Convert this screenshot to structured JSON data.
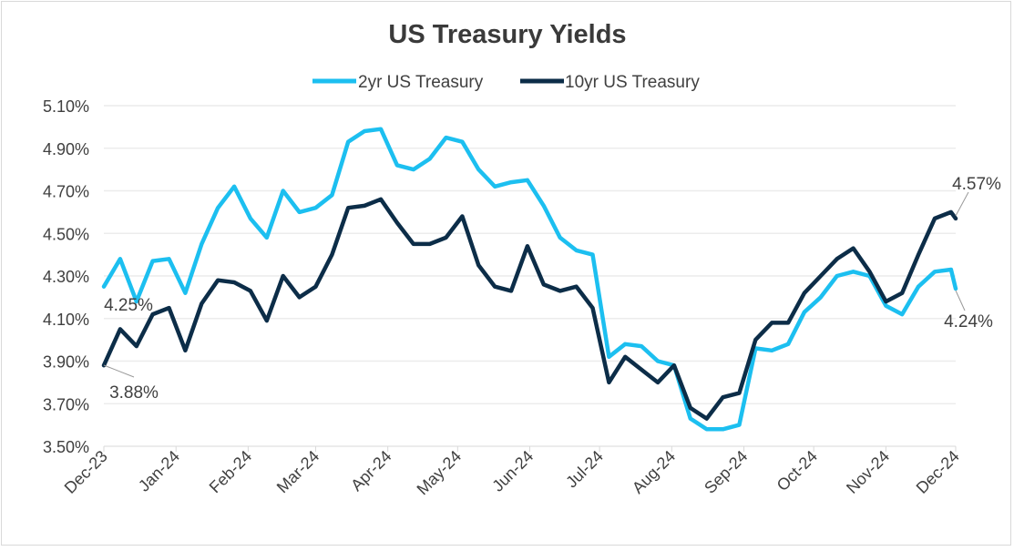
{
  "chart_data": {
    "type": "line",
    "title": "US Treasury Yields",
    "xlabel": "",
    "ylabel": "",
    "legend_position": "top",
    "grid": true,
    "ylim": [
      3.5,
      5.1
    ],
    "y_ticks": [
      "5.10%",
      "4.90%",
      "4.70%",
      "4.50%",
      "4.30%",
      "4.10%",
      "3.90%",
      "3.70%",
      "3.50%"
    ],
    "y_tick_values": [
      5.1,
      4.9,
      4.7,
      4.5,
      4.3,
      4.1,
      3.9,
      3.7,
      3.5
    ],
    "x_range": [
      "2023-12-01",
      "2024-12-01"
    ],
    "x_ticks": [
      "Dec-23",
      "Jan-24",
      "Feb-24",
      "Mar-24",
      "Apr-24",
      "May-24",
      "Jun-24",
      "Jul-24",
      "Aug-24",
      "Sep-24",
      "Oct-24",
      "Nov-24",
      "Dec-24"
    ],
    "x_tick_dates": [
      "2023-12-01",
      "2024-01-01",
      "2024-02-01",
      "2024-03-01",
      "2024-04-01",
      "2024-05-01",
      "2024-06-01",
      "2024-07-01",
      "2024-08-01",
      "2024-09-01",
      "2024-10-01",
      "2024-11-01",
      "2024-12-01"
    ],
    "x": [
      "2023-12-01",
      "2023-12-08",
      "2023-12-15",
      "2023-12-22",
      "2023-12-29",
      "2024-01-05",
      "2024-01-12",
      "2024-01-19",
      "2024-01-26",
      "2024-02-02",
      "2024-02-09",
      "2024-02-16",
      "2024-02-23",
      "2024-03-01",
      "2024-03-08",
      "2024-03-15",
      "2024-03-22",
      "2024-03-29",
      "2024-04-05",
      "2024-04-12",
      "2024-04-19",
      "2024-04-26",
      "2024-05-03",
      "2024-05-10",
      "2024-05-17",
      "2024-05-24",
      "2024-05-31",
      "2024-06-07",
      "2024-06-14",
      "2024-06-21",
      "2024-06-28",
      "2024-07-05",
      "2024-07-12",
      "2024-07-19",
      "2024-07-26",
      "2024-08-02",
      "2024-08-09",
      "2024-08-16",
      "2024-08-23",
      "2024-08-30",
      "2024-09-06",
      "2024-09-13",
      "2024-09-20",
      "2024-09-27",
      "2024-10-04",
      "2024-10-11",
      "2024-10-18",
      "2024-10-25",
      "2024-11-01",
      "2024-11-08",
      "2024-11-15",
      "2024-11-22",
      "2024-11-29",
      "2024-12-01"
    ],
    "series": [
      {
        "name": "2yr US Treasury",
        "color": "#1cbff0",
        "values": [
          4.25,
          4.38,
          4.18,
          4.37,
          4.38,
          4.22,
          4.45,
          4.62,
          4.72,
          4.57,
          4.48,
          4.7,
          4.6,
          4.62,
          4.68,
          4.93,
          4.98,
          4.99,
          4.82,
          4.8,
          4.85,
          4.95,
          4.93,
          4.8,
          4.72,
          4.74,
          4.75,
          4.63,
          4.48,
          4.42,
          4.4,
          3.92,
          3.98,
          3.97,
          3.9,
          3.88,
          3.63,
          3.58,
          3.58,
          3.6,
          3.96,
          3.95,
          3.98,
          4.13,
          4.2,
          4.3,
          4.32,
          4.3,
          4.16,
          4.12,
          4.25,
          4.32,
          4.33,
          4.24
        ]
      },
      {
        "name": "10yr US Treasury",
        "color": "#0c2d48",
        "values": [
          3.88,
          4.05,
          3.97,
          4.12,
          4.15,
          3.95,
          4.17,
          4.28,
          4.27,
          4.23,
          4.09,
          4.3,
          4.2,
          4.25,
          4.4,
          4.62,
          4.63,
          4.66,
          4.55,
          4.45,
          4.45,
          4.48,
          4.58,
          4.35,
          4.25,
          4.23,
          4.44,
          4.26,
          4.23,
          4.25,
          4.15,
          3.8,
          3.92,
          3.86,
          3.8,
          3.88,
          3.68,
          3.63,
          3.73,
          3.75,
          4.0,
          4.08,
          4.08,
          4.22,
          4.3,
          4.38,
          4.43,
          4.32,
          4.18,
          4.22,
          4.4,
          4.57,
          4.6,
          4.57
        ]
      }
    ],
    "annotations": [
      {
        "text": "4.25%",
        "series": "2yr US Treasury",
        "point": "start"
      },
      {
        "text": "3.88%",
        "series": "10yr US Treasury",
        "point": "start"
      },
      {
        "text": "4.57%",
        "series": "10yr US Treasury",
        "point": "end"
      },
      {
        "text": "4.24%",
        "series": "2yr US Treasury",
        "point": "end"
      }
    ]
  }
}
